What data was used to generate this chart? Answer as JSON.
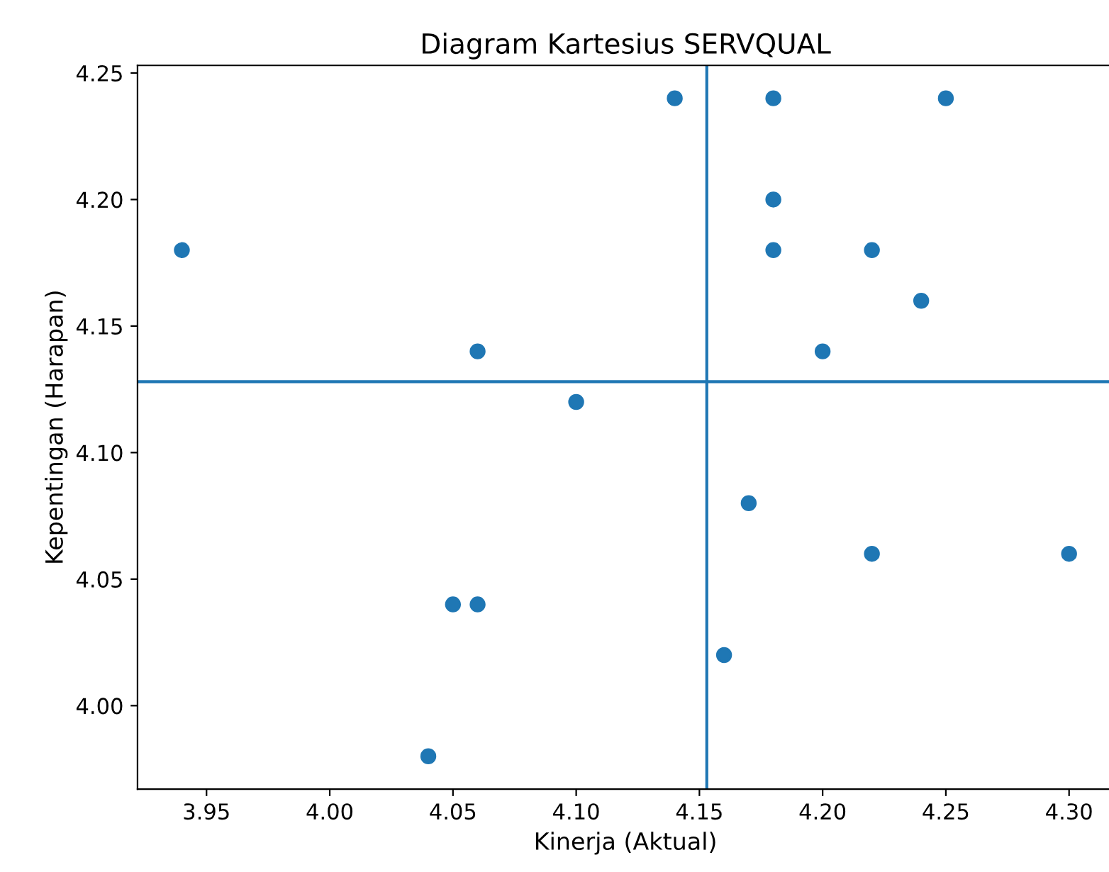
{
  "chart_data": {
    "type": "scatter",
    "title": "Diagram Kartesius SERVQUAL",
    "xlabel": "Kinerja (Aktual)",
    "ylabel": "Kepentingan (Harapan)",
    "x": [
      3.94,
      4.04,
      4.05,
      4.06,
      4.06,
      4.1,
      4.14,
      4.16,
      4.17,
      4.18,
      4.18,
      4.18,
      4.2,
      4.22,
      4.22,
      4.24,
      4.25,
      4.3
    ],
    "series": [
      {
        "color": "#1f77b4",
        "values": [
          4.18,
          3.98,
          4.04,
          4.04,
          4.14,
          4.12,
          4.24,
          4.02,
          4.08,
          4.24,
          4.2,
          4.18,
          4.14,
          4.18,
          4.06,
          4.16,
          4.24,
          4.06
        ]
      }
    ],
    "xlim": [
      3.922,
      4.318
    ],
    "ylim": [
      3.967,
      4.253
    ],
    "xticks": [
      3.95,
      {
        "value": 4.0,
        "label": "4.00"
      },
      4.05,
      {
        "value": 4.1,
        "label": "4.10"
      },
      4.15,
      {
        "value": 4.2,
        "label": "4.20"
      },
      4.25,
      {
        "value": 4.3,
        "label": "4.30"
      }
    ],
    "yticks": [
      {
        "value": 4.0,
        "label": "4.00"
      },
      4.05,
      {
        "value": 4.1,
        "label": "4.10"
      },
      4.15,
      {
        "value": 4.2,
        "label": "4.20"
      },
      4.25
    ],
    "marker": "circle",
    "ref_lines": [
      {
        "axis": "x",
        "value": 4.153,
        "label": null,
        "color": "#1f77b4"
      },
      {
        "axis": "y",
        "value": 4.128,
        "label": null,
        "color": "#1f77b4"
      }
    ]
  }
}
